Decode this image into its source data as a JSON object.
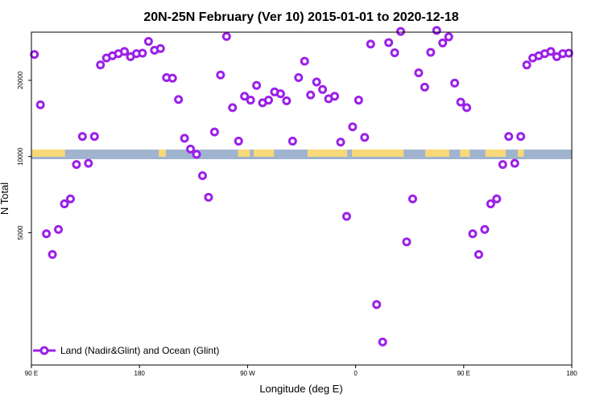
{
  "chart_data": {
    "type": "scatter",
    "title": "20N-25N February (Ver 10)   2015-01-01 to 2020-12-18",
    "xlabel": "Longitude (deg E)",
    "ylabel": "N Total",
    "x_axis_note": "longitude in degrees East, wrapped: 90E -> 180 -> 180W(-180) -> 90W -> 0 -> 90E -> 180",
    "xlim_deg": [
      90,
      540
    ],
    "ylim": [
      1500,
      31000
    ],
    "y_scale": "log",
    "x_ticks": [
      {
        "pos": 90,
        "label": "90 E"
      },
      {
        "pos": 180,
        "label": "180"
      },
      {
        "pos": 270,
        "label": "90 W"
      },
      {
        "pos": 360,
        "label": "0"
      },
      {
        "pos": 450,
        "label": "90 E"
      },
      {
        "pos": 540,
        "label": "180"
      }
    ],
    "y_ticks": [
      5000,
      10000,
      20000
    ],
    "grid": false,
    "legend": {
      "position": "bottom-left",
      "entries": [
        "Land (Nadir&Glint) and Ocean (Glint)"
      ]
    },
    "colors": {
      "series": "#9b20e8",
      "ocean": "#a0b4d0",
      "land": "#f8d878"
    },
    "series": [
      {
        "name": "Land (Nadir&Glint) and Ocean (Glint)",
        "x": [
          92.5,
          97.5,
          102.5,
          107.5,
          112.5,
          117.5,
          122.5,
          127.5,
          132.5,
          137.5,
          142.5,
          147.5,
          152.5,
          157.5,
          162.5,
          167.5,
          172.5,
          177.5,
          182.5,
          187.5,
          192.5,
          197.5,
          202.5,
          207.5,
          212.5,
          217.5,
          222.5,
          227.5,
          232.5,
          237.5,
          242.5,
          247.5,
          252.5,
          257.5,
          262.5,
          267.5,
          272.5,
          277.5,
          282.5,
          287.5,
          292.5,
          297.5,
          302.5,
          307.5,
          312.5,
          317.5,
          322.5,
          327.5,
          332.5,
          337.5,
          342.5,
          347.5,
          352.5,
          357.5,
          362.5,
          367.5,
          372.5,
          377.5,
          382.5,
          387.5,
          392.5,
          397.5,
          402.5,
          407.5,
          412.5,
          417.5,
          422.5,
          427.5,
          432.5,
          437.5,
          442.5,
          447.5,
          452.5,
          457.5,
          462.5,
          467.5,
          472.5,
          477.5,
          482.5,
          487.5,
          492.5,
          497.5,
          502.5,
          507.5,
          512.5,
          517.5,
          522.5,
          527.5,
          532.5,
          537.5
        ],
        "y": [
          25300,
          16000,
          4950,
          4100,
          5150,
          6500,
          6800,
          9300,
          12000,
          9400,
          12000,
          23000,
          24500,
          25000,
          25500,
          26000,
          24800,
          25500,
          25600,
          28500,
          26300,
          26700,
          20500,
          20400,
          16800,
          11800,
          10700,
          10200,
          8400,
          6900,
          12500,
          21000,
          29800,
          15600,
          11500,
          17300,
          16700,
          19100,
          16300,
          16700,
          18000,
          17700,
          16600,
          11500,
          20500,
          23800,
          17500,
          19700,
          18400,
          16900,
          17300,
          11400,
          5800,
          13100,
          16700,
          11900,
          27800,
          2600,
          1850,
          28200,
          25700,
          31200,
          4600,
          6800,
          21400,
          18800,
          25800,
          31500,
          28100,
          29700,
          19500,
          16400,
          15600,
          4950,
          4100,
          5150,
          6500,
          6800,
          9300,
          12000,
          9400,
          12000,
          23000,
          24500,
          25000,
          25500,
          26000,
          24800,
          25500,
          25600
        ]
      }
    ]
  }
}
